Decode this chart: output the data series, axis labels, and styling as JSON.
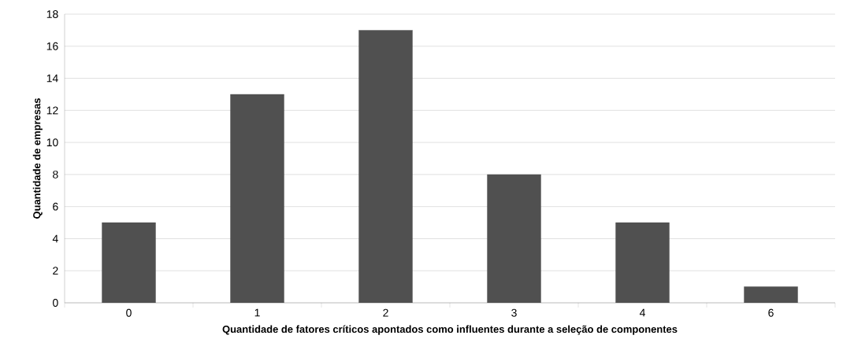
{
  "chart_data": {
    "type": "bar",
    "xlabel": "Quantidade de fatores críticos apontados como influentes durante a seleção de componentes",
    "ylabel": "Quantidade de empresas",
    "categories": [
      "0",
      "1",
      "2",
      "3",
      "4",
      "6"
    ],
    "values": [
      5,
      13,
      17,
      8,
      5,
      1
    ],
    "color": "#505050",
    "ylim": [
      0,
      18
    ],
    "yticks": [
      0,
      2,
      4,
      6,
      8,
      10,
      12,
      14,
      16,
      18
    ],
    "grid": "y"
  }
}
